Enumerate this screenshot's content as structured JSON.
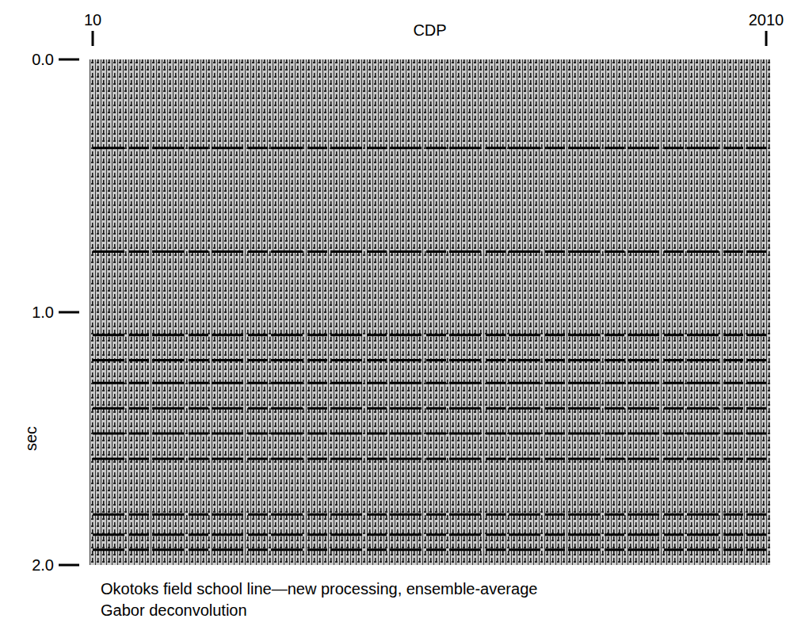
{
  "chart_data": {
    "type": "seismic",
    "x_label": "CDP",
    "y_label": "sec",
    "caption_lines": [
      "Okotoks field school line—new processing, ensemble-average",
      "Gabor deconvolution"
    ],
    "xlim": [
      10,
      2010
    ],
    "xticks": [
      10,
      2010
    ],
    "ylim": [
      0,
      2
    ],
    "yticks": [
      {
        "value": 0,
        "label": "0.0"
      },
      {
        "value": 1,
        "label": "1.0"
      },
      {
        "value": 2,
        "label": "2.0"
      }
    ],
    "reflectors": [
      0.35,
      0.76,
      1.09,
      1.19,
      1.28,
      1.38,
      1.48,
      1.58,
      1.8,
      1.88,
      1.94
    ]
  }
}
